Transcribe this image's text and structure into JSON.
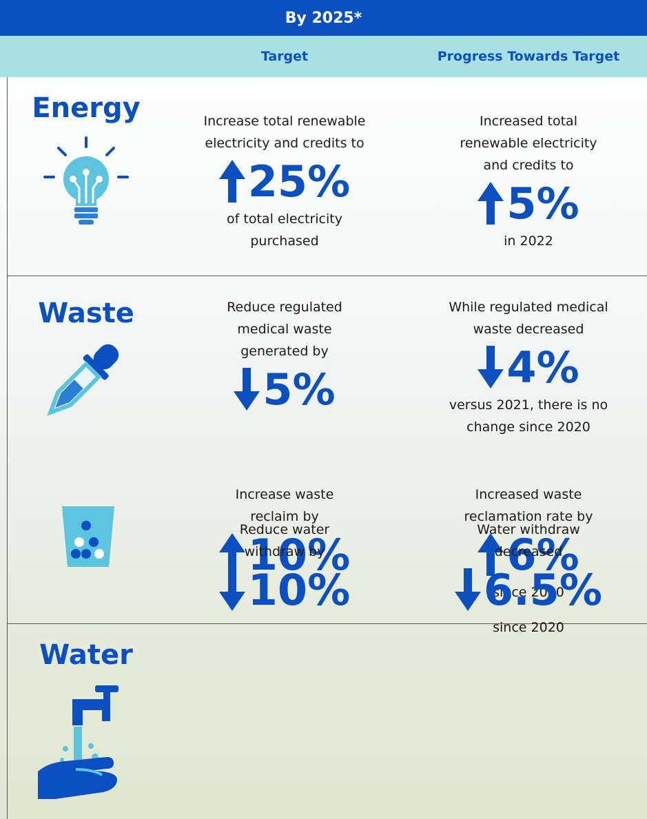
{
  "header": {
    "title": "By 2025*"
  },
  "columns": [
    "Target",
    "Progress Towards Target"
  ],
  "sections": [
    {
      "label": "Energy",
      "rows": [
        {
          "target": {
            "before": [
              "Increase total renewable",
              "electricity and credits to"
            ],
            "direction": "up",
            "value": "25%",
            "after": [
              "of total electricity",
              "purchased"
            ]
          },
          "progress": {
            "before": [
              "Increased total",
              "renewable electricity",
              "and credits to"
            ],
            "direction": "up",
            "value": "5%",
            "after": [
              "in 2022"
            ]
          }
        }
      ]
    },
    {
      "label": "Waste",
      "rows": [
        {
          "target": {
            "before": [
              "Reduce regulated",
              "medical waste",
              "generated by"
            ],
            "direction": "down",
            "value": "5%",
            "after": []
          },
          "progress": {
            "before": [
              "While regulated medical",
              "waste decreased"
            ],
            "direction": "down",
            "value": "4%",
            "after": [
              "versus 2021, there is no",
              "change since 2020"
            ]
          }
        },
        {
          "target": {
            "before": [
              "Increase waste",
              "reclaim by"
            ],
            "direction": "up",
            "value": "10%",
            "after": []
          },
          "progress": {
            "before": [
              "Increased waste",
              "reclamation rate by"
            ],
            "direction": "up",
            "value": "6%",
            "after": [
              "since 2020"
            ]
          }
        }
      ]
    },
    {
      "label": "Water",
      "rows": [
        {
          "target": {
            "before": [
              "Reduce water",
              "withdraw  by"
            ],
            "direction": "down",
            "value": "10%",
            "after": []
          },
          "progress": {
            "before": [
              "Water withdraw",
              "decreased"
            ],
            "direction": "down",
            "value": "6.5%",
            "after": [
              "since 2020"
            ]
          }
        }
      ]
    }
  ]
}
